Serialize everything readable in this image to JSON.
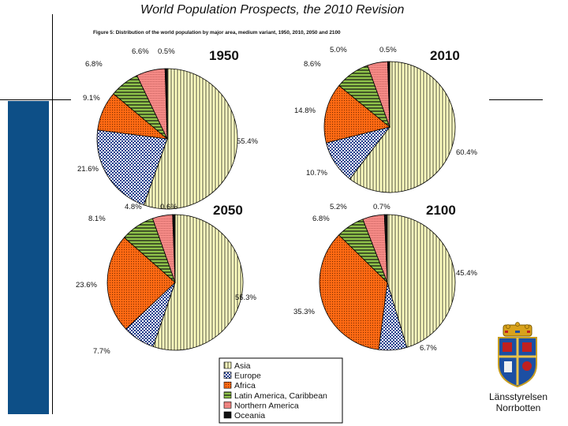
{
  "header": {
    "title": "World Population Prospects, the 2010 Revision",
    "subtitle": "Figure 5: Distribution of the world population by major area, medium variant, 1950, 2010, 2050 and 2100"
  },
  "chart_data": {
    "type": "pie",
    "legend": {
      "placement": "bottom-center",
      "items": [
        "Asia",
        "Europe",
        "Africa",
        "Latin America, Caribbean",
        "Northern America",
        "Oceania"
      ]
    },
    "series": [
      {
        "name": "1950",
        "labels": [
          "Asia",
          "Europe",
          "Africa",
          "Latin America, Caribbean",
          "Northern America",
          "Oceania"
        ],
        "values": [
          55.4,
          21.6,
          9.1,
          6.8,
          6.6,
          0.5
        ],
        "value_labels": [
          "55.4%",
          "21.6%",
          "9.1%",
          "6.8%",
          "6.6%",
          "0.5%"
        ]
      },
      {
        "name": "2010",
        "labels": [
          "Asia",
          "Europe",
          "Africa",
          "Latin America, Caribbean",
          "Northern America",
          "Oceania"
        ],
        "values": [
          60.4,
          10.7,
          14.8,
          8.6,
          5.0,
          0.5
        ],
        "value_labels": [
          "60.4%",
          "10.7%",
          "14.8%",
          "8.6%",
          "5.0%",
          "0.5%"
        ]
      },
      {
        "name": "2050",
        "labels": [
          "Asia",
          "Europe",
          "Africa",
          "Latin America, Caribbean",
          "Northern America",
          "Oceania"
        ],
        "values": [
          55.3,
          7.7,
          23.6,
          8.1,
          4.8,
          0.6
        ],
        "value_labels": [
          "55.3%",
          "7.7%",
          "23.6%",
          "8.1%",
          "4.8%",
          "0.6%"
        ]
      },
      {
        "name": "2100",
        "labels": [
          "Asia",
          "Europe",
          "Africa",
          "Latin America, Caribbean",
          "Northern America",
          "Oceania"
        ],
        "values": [
          45.4,
          6.7,
          35.3,
          6.8,
          5.2,
          0.7
        ],
        "value_labels": [
          "45.4%",
          "6.7%",
          "35.3%",
          "6.8%",
          "5.2%",
          "0.7%"
        ]
      }
    ]
  },
  "colors": {
    "asia": "#ffffc0",
    "europe": "#1f3d8c",
    "africa": "#ff6a13",
    "latin_america": "#8fc34a",
    "northern_america": "#f58a86",
    "oceania": "#111111",
    "sidebar": "#0d4f87"
  },
  "branding": {
    "org_line1": "Länsstyrelsen",
    "org_line2": "Norrbotten"
  }
}
